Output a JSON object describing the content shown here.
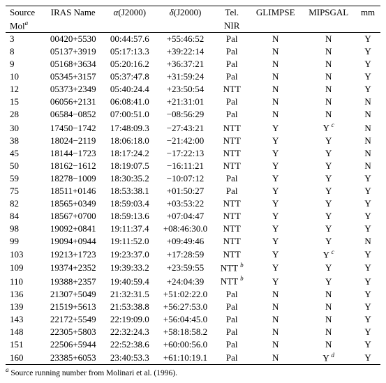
{
  "columns": {
    "c1a": "Source",
    "c1b_html": "Mol<span class='sup'>a</span>",
    "c2": "IRAS Name",
    "c3_html": "<span class='it'>α</span>(J2000)",
    "c4_html": "<span class='it'>δ</span>(J2000)",
    "c5a": "Tel.",
    "c5b": "NIR",
    "c6": "GLIMPSE",
    "c7": "MIPSGAL",
    "c8": "mm"
  },
  "rows": [
    [
      "3",
      "00420+5530",
      "00:44:57.6",
      "+55:46:52",
      "Pal",
      "N",
      "N",
      "Y"
    ],
    [
      "8",
      "05137+3919",
      "05:17:13.3",
      "+39:22:14",
      "Pal",
      "N",
      "N",
      "Y"
    ],
    [
      "9",
      "05168+3634",
      "05:20:16.2",
      "+36:37:21",
      "Pal",
      "N",
      "N",
      "Y"
    ],
    [
      "10",
      "05345+3157",
      "05:37:47.8",
      "+31:59:24",
      "Pal",
      "N",
      "N",
      "Y"
    ],
    [
      "12",
      "05373+2349",
      "05:40:24.4",
      "+23:50:54",
      "NTT",
      "N",
      "N",
      "Y"
    ],
    [
      "15",
      "06056+2131",
      "06:08:41.0",
      "+21:31:01",
      "Pal",
      "N",
      "N",
      "N"
    ],
    [
      "28",
      "06584−0852",
      "07:00:51.0",
      "−08:56:29",
      "Pal",
      "N",
      "N",
      "N"
    ],
    [
      "30",
      "17450−1742",
      "17:48:09.3",
      "−27:43:21",
      "NTT",
      "Y",
      "Y <span class='sup'>c</span>",
      "N"
    ],
    [
      "38",
      "18024−2119",
      "18:06:18.0",
      "−21:42:00",
      "NTT",
      "Y",
      "Y",
      "N"
    ],
    [
      "45",
      "18144−1723",
      "18:17:24.2",
      "−17:22:13",
      "NTT",
      "Y",
      "Y",
      "N"
    ],
    [
      "50",
      "18162−1612",
      "18:19:07.5",
      "−16:11:21",
      "NTT",
      "Y",
      "Y",
      "N"
    ],
    [
      "59",
      "18278−1009",
      "18:30:35.2",
      "−10:07:12",
      "Pal",
      "Y",
      "Y",
      "Y"
    ],
    [
      "75",
      "18511+0146",
      "18:53:38.1",
      "+01:50:27",
      "Pal",
      "Y",
      "Y",
      "Y"
    ],
    [
      "82",
      "18565+0349",
      "18:59:03.4",
      "+03:53:22",
      "NTT",
      "Y",
      "Y",
      "Y"
    ],
    [
      "84",
      "18567+0700",
      "18:59:13.6",
      "+07:04:47",
      "NTT",
      "Y",
      "Y",
      "Y"
    ],
    [
      "98",
      "19092+0841",
      "19:11:37.4",
      "+08:46:30.0",
      "NTT",
      "Y",
      "Y",
      "Y"
    ],
    [
      "99",
      "19094+0944",
      "19:11:52.0",
      "+09:49:46",
      "NTT",
      "Y",
      "Y",
      "N"
    ],
    [
      "103",
      "19213+1723",
      "19:23:37.0",
      "+17:28:59",
      "NTT",
      "Y",
      "Y <span class='sup'>c</span>",
      "Y"
    ],
    [
      "109",
      "19374+2352",
      "19:39:33.2",
      "+23:59:55",
      "NTT <span class='sup'>b</span>",
      "Y",
      "Y",
      "Y"
    ],
    [
      "110",
      "19388+2357",
      "19:40:59.4",
      "+24:04:39",
      "NTT <span class='sup'>b</span>",
      "Y",
      "Y",
      "Y"
    ],
    [
      "136",
      "21307+5049",
      "21:32:31.5",
      "+51:02:22.0",
      "Pal",
      "N",
      "N",
      "Y"
    ],
    [
      "139",
      "21519+5613",
      "21:53:38.8",
      "+56:27:53.0",
      "Pal",
      "N",
      "N",
      "Y"
    ],
    [
      "143",
      "22172+5549",
      "22:19:09.0",
      "+56:04:45.0",
      "Pal",
      "N",
      "N",
      "Y"
    ],
    [
      "148",
      "22305+5803",
      "22:32:24.3",
      "+58:18:58.2",
      "Pal",
      "N",
      "N",
      "Y"
    ],
    [
      "151",
      "22506+5944",
      "22:52:38.6",
      "+60:00:56.0",
      "Pal",
      "N",
      "N",
      "Y"
    ],
    [
      "160",
      "23385+6053",
      "23:40:53.3",
      "+61:10:19.1",
      "Pal",
      "N",
      "Y <span class='sup'>d</span>",
      "Y"
    ]
  ],
  "footnote_html": "<span class='sup'>a</span> Source running number from Molinari et al. (1996)."
}
